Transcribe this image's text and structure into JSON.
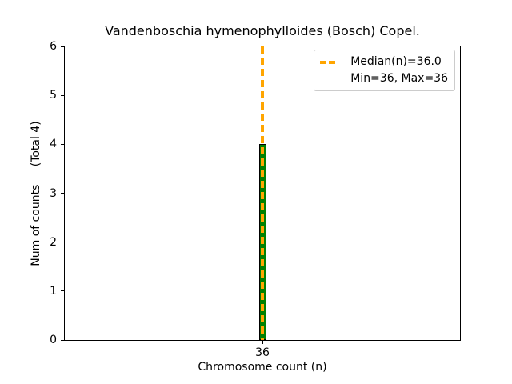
{
  "chart_data": {
    "type": "bar",
    "title": "Vandenboschia hymenophylloides (Bosch) Copel.",
    "xlabel": "Chromosome count (n)",
    "ylabel": "Num of counts     (Total 4)",
    "categories": [
      "36"
    ],
    "values": [
      4
    ],
    "total": 4,
    "median": 36.0,
    "min": 36,
    "max": 36,
    "ylim": [
      0,
      6
    ],
    "yticks": [
      0,
      1,
      2,
      3,
      4,
      5,
      6
    ],
    "xticks": [
      "36"
    ],
    "grid": false,
    "legend": {
      "position": "upper right",
      "entries": [
        "Median(n)=36.0",
        "Min=36, Max=36"
      ]
    },
    "colors": {
      "bar_fill": "#008000",
      "bar_edge": "#000000",
      "median_line": "#FFA500",
      "spine": "#000000",
      "legend_border": "#cccccc",
      "background": "#ffffff"
    }
  }
}
